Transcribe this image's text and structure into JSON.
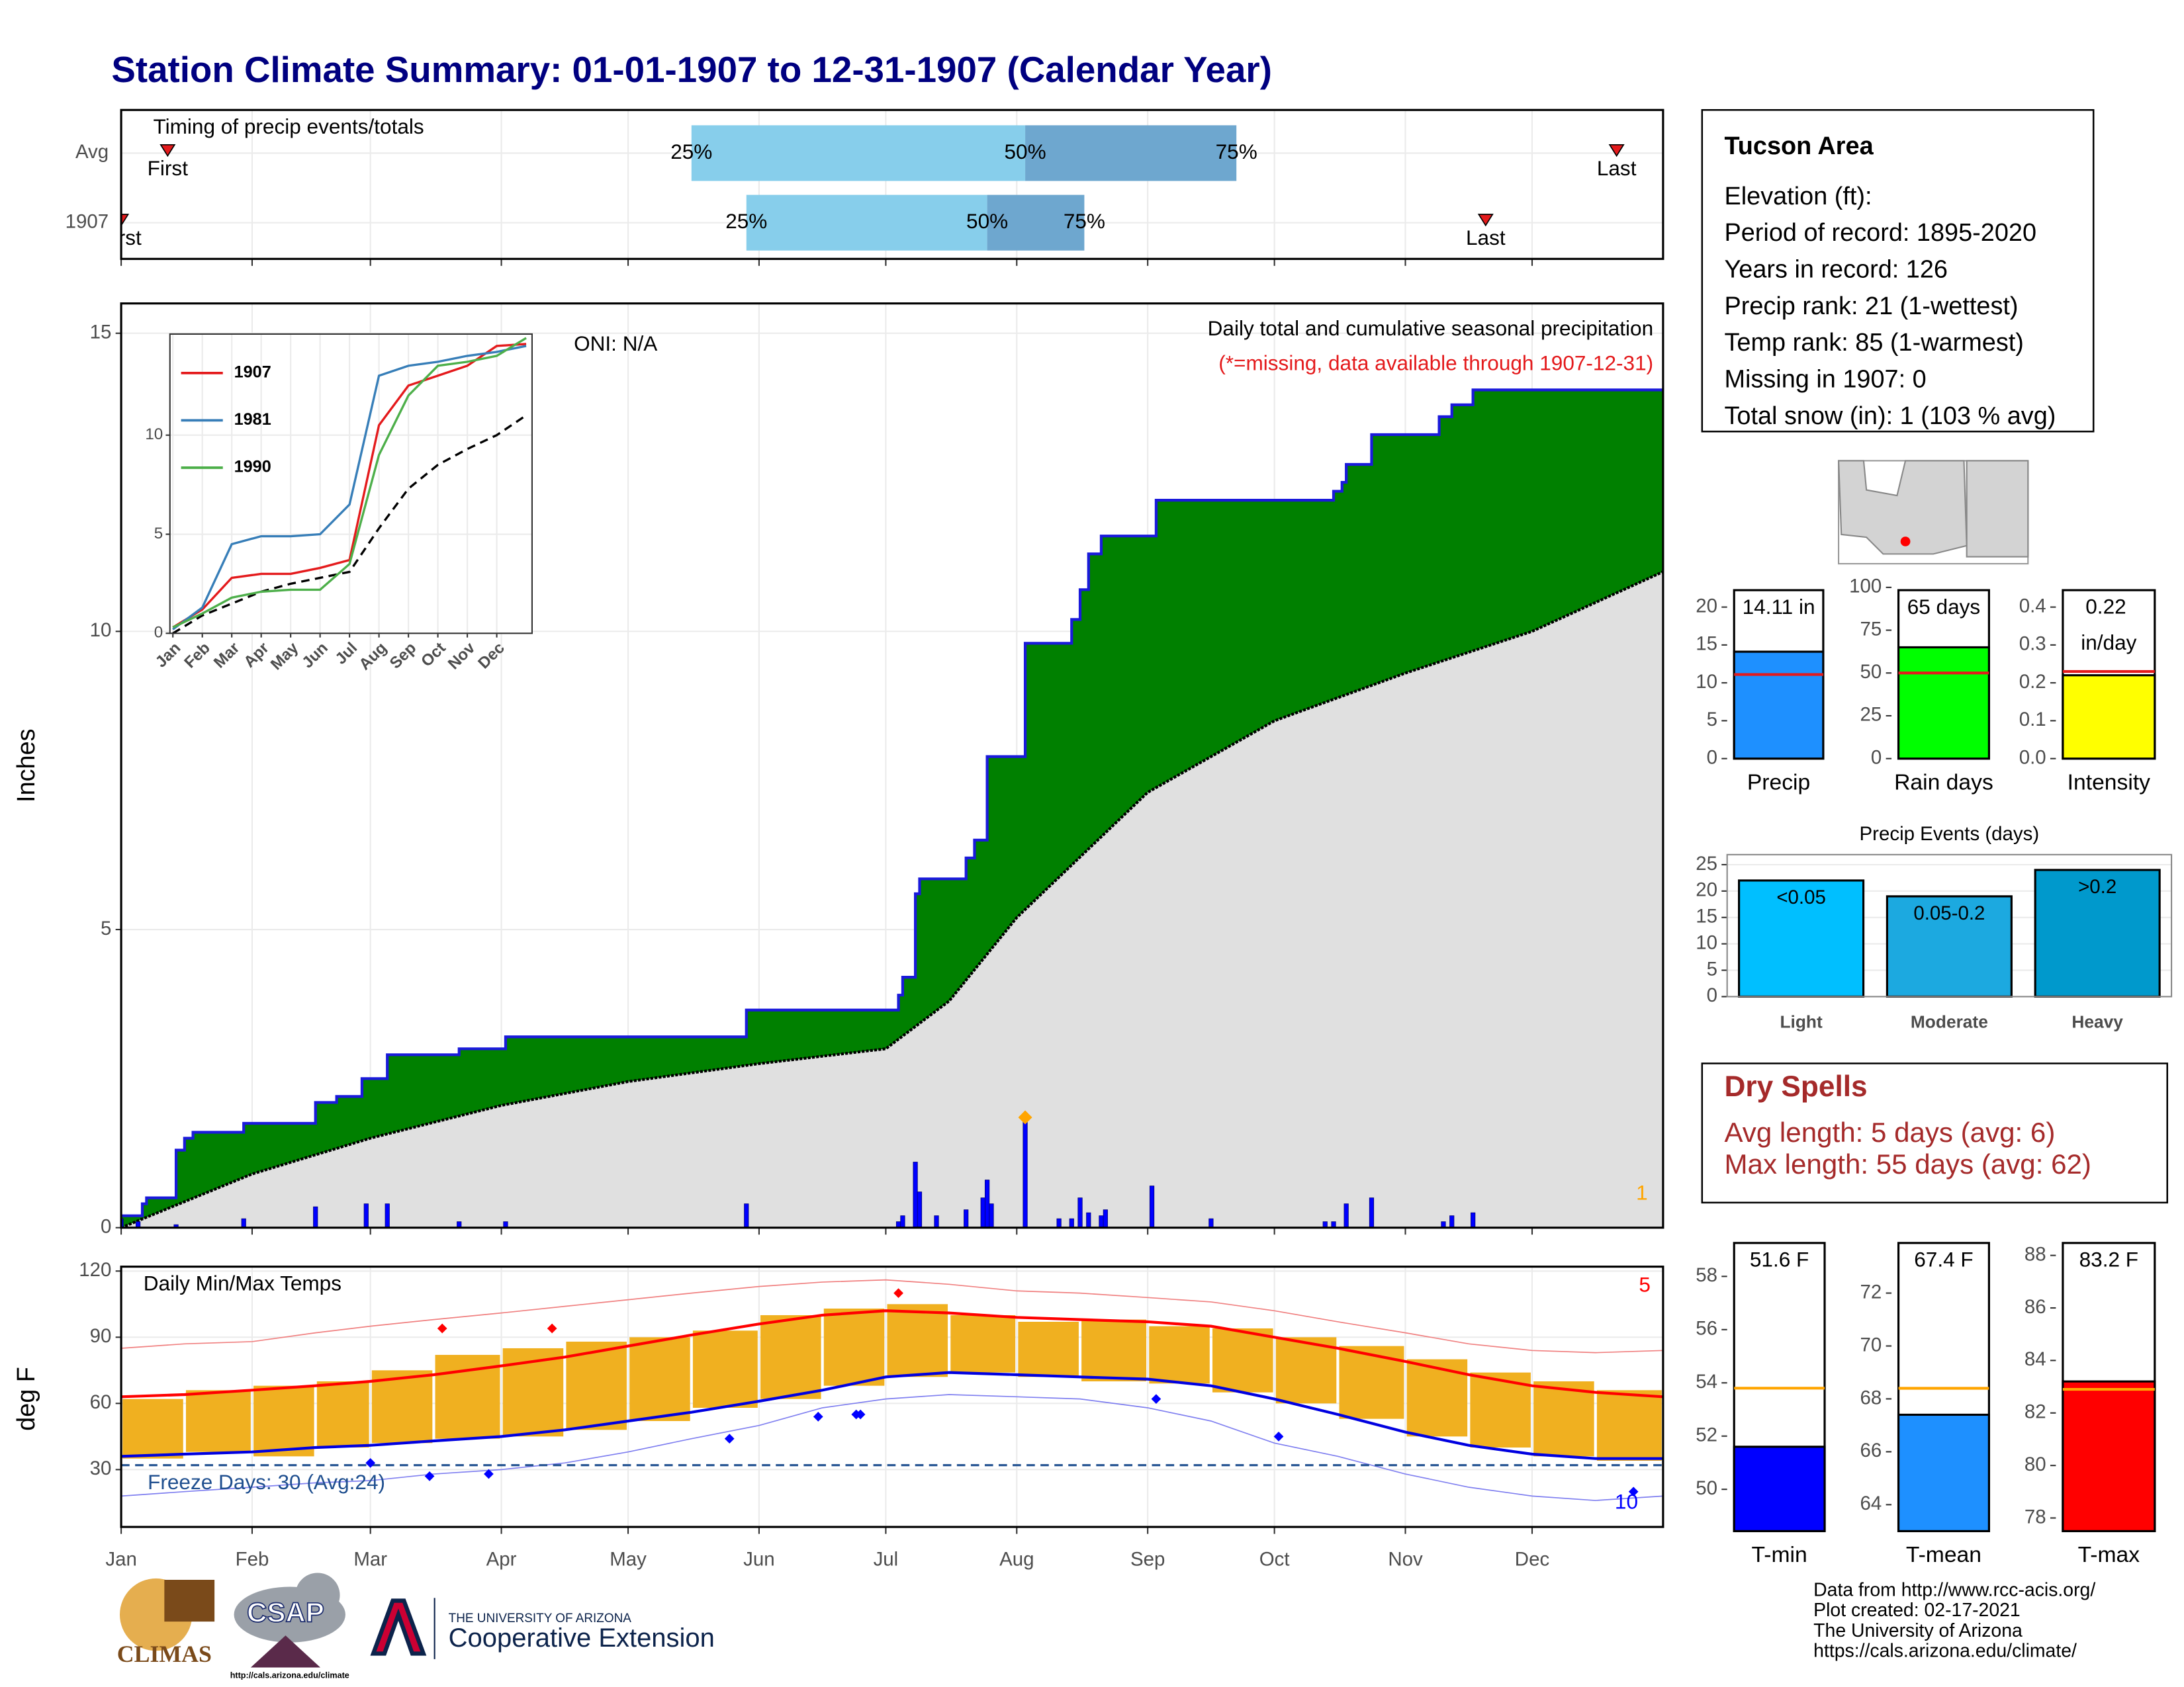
{
  "title": "Station Climate Summary: 01-01-1907 to 12-31-1907 (Calendar Year)",
  "station": {
    "name": "Tucson Area",
    "lines": [
      "Elevation (ft):",
      "Period of record: 1895-2020",
      "Years in record: 126",
      "Precip rank: 21 (1-wettest)",
      "Temp rank: 85 (1-warmest)",
      "Missing in 1907: 0",
      "Total snow (in): 1 (103 % avg)"
    ]
  },
  "dry_spells": {
    "title": "Dry Spells",
    "lines": [
      "Avg length: 5 days (avg: 6)",
      "Max length: 55 days (avg: 62)"
    ]
  },
  "footer": [
    "Data from http://www.rcc-acis.org/",
    "Plot created: 02-17-2021",
    "The University of Arizona",
    "https://cals.arizona.edu/climate/"
  ],
  "logos": {
    "climas": "CLIMAS",
    "csap": "CSAP",
    "csap_url": "http://cals.arizona.edu/climate",
    "ua": "THE UNIVERSITY OF ARIZONA",
    "ua_unit": "Cooperative Extension"
  },
  "chart_data": [
    {
      "type": "timing",
      "subtitle": "Timing of precip events/totals",
      "xlim": [
        0,
        365
      ],
      "quartile_labels": [
        "25%",
        "50%",
        "75%"
      ],
      "first_label": "First",
      "last_label": "Last",
      "colors": [
        "#87ceeb",
        "#6ea7cf"
      ],
      "marker_color": "#e41a1c",
      "series": [
        {
          "name": "Avg",
          "first": 11,
          "quartiles": [
            135,
            214,
            264
          ],
          "last": 354
        },
        {
          "name": "1907",
          "first": 0,
          "quartiles": [
            148,
            205,
            228
          ],
          "last": 323
        }
      ]
    },
    {
      "type": "area",
      "ylabel": "Inches",
      "oni": "ONI: N/A",
      "subtitle": "Daily total and cumulative seasonal precipitation",
      "note": "(*=missing, data available through 1907-12-31)",
      "corner_label": "1",
      "xlim": [
        0,
        365
      ],
      "ylim": [
        0,
        15.5
      ],
      "yticks": [
        0,
        5,
        10,
        15
      ],
      "grid": true,
      "colors": {
        "cumulative": "#008000",
        "edge": "#1a1adb",
        "average": "#e0e0e0",
        "average_line": "#000000",
        "daily": "#0000ff",
        "max": "#ffa500",
        "note": "#e41a1c",
        "corner": "#ffa500"
      },
      "cumulative": {
        "x": [
          0,
          5,
          6,
          13,
          15,
          17,
          29,
          46,
          51,
          57,
          63,
          80,
          91,
          148,
          184,
          185,
          188,
          189,
          200,
          202,
          205,
          214,
          225,
          227,
          229,
          232,
          245,
          287,
          289,
          290,
          296,
          312,
          315,
          320
        ],
        "values": [
          0.2,
          0.4,
          0.5,
          1.3,
          1.5,
          1.6,
          1.75,
          2.1,
          2.2,
          2.5,
          2.9,
          3.0,
          3.2,
          3.65,
          3.9,
          4.2,
          5.6,
          5.85,
          6.2,
          6.5,
          7.9,
          9.8,
          10.2,
          10.7,
          11.3,
          11.6,
          12.2,
          12.35,
          12.5,
          12.8,
          13.3,
          13.6,
          13.8,
          14.05
        ]
      },
      "average": {
        "x": [
          0,
          31,
          59,
          90,
          120,
          151,
          181,
          196,
          212,
          243,
          273,
          304,
          334,
          365
        ],
        "values": [
          0,
          0.9,
          1.5,
          2.05,
          2.45,
          2.75,
          3.0,
          3.8,
          5.2,
          7.3,
          8.5,
          9.3,
          10.0,
          11.0
        ]
      },
      "daily": {
        "x": [
          0,
          4,
          13,
          29,
          46,
          58,
          63,
          80,
          91,
          148,
          184,
          185,
          188,
          189,
          193,
          200,
          204,
          205,
          206,
          214,
          222,
          225,
          227,
          229,
          232,
          233,
          244,
          258,
          285,
          287,
          290,
          296,
          313,
          315,
          320
        ],
        "values": [
          0.15,
          0.1,
          0.05,
          0.15,
          0.35,
          0.4,
          0.4,
          0.1,
          0.1,
          0.4,
          0.1,
          0.2,
          1.1,
          0.6,
          0.2,
          0.3,
          0.5,
          0.8,
          0.4,
          1.85,
          0.15,
          0.15,
          0.5,
          0.25,
          0.2,
          0.3,
          0.7,
          0.15,
          0.1,
          0.1,
          0.4,
          0.5,
          0.1,
          0.2,
          0.25
        ]
      }
    },
    {
      "type": "line",
      "x": [
        0,
        1,
        2,
        3,
        4,
        5,
        6,
        7,
        8,
        9,
        10,
        11,
        12
      ],
      "xlim": [
        -0.1,
        12.2
      ],
      "ylim": [
        0,
        15.1
      ],
      "yticks": [
        0,
        5,
        10
      ],
      "xticks": [
        {
          "value": 0,
          "label": "Jan"
        },
        {
          "value": 1,
          "label": "Feb"
        },
        {
          "value": 2,
          "label": "Mar"
        },
        {
          "value": 3,
          "label": "Apr"
        },
        {
          "value": 4,
          "label": "May"
        },
        {
          "value": 5,
          "label": "Jun"
        },
        {
          "value": 6,
          "label": "Jul"
        },
        {
          "value": 7,
          "label": "Aug"
        },
        {
          "value": 8,
          "label": "Sep"
        },
        {
          "value": 9,
          "label": "Oct"
        },
        {
          "value": 10,
          "label": "Nov"
        },
        {
          "value": 11,
          "label": "Dec"
        }
      ],
      "series": [
        {
          "name": "1907",
          "color": "#e41a1c",
          "values": [
            0.3,
            1.2,
            2.8,
            3.0,
            3.0,
            3.3,
            3.7,
            10.5,
            12.5,
            13.0,
            13.5,
            14.5,
            14.6
          ]
        },
        {
          "name": "1981",
          "color": "#377eb8",
          "values": [
            0.2,
            1.3,
            4.5,
            4.9,
            4.9,
            5.0,
            6.5,
            13.0,
            13.5,
            13.7,
            14.0,
            14.2,
            14.5
          ]
        },
        {
          "name": "1990",
          "color": "#4daf4a",
          "values": [
            0.3,
            1.0,
            1.8,
            2.1,
            2.2,
            2.2,
            3.5,
            9.0,
            12.0,
            13.5,
            13.7,
            14.0,
            14.9
          ]
        }
      ],
      "average": {
        "color": "#000000",
        "values": [
          0,
          0.9,
          1.5,
          2.1,
          2.5,
          2.8,
          3.1,
          5.3,
          7.3,
          8.5,
          9.3,
          10.0,
          11.0
        ]
      }
    },
    {
      "type": "range",
      "title": "Daily Min/Max Temps",
      "ylabel": "deg F",
      "freeze_label": "Freeze Days: 30 (Avg:24)",
      "record_high_count": "5",
      "record_low_count": "10",
      "xlim": [
        0,
        365
      ],
      "ylim": [
        4,
        122
      ],
      "yticks": [
        30,
        60,
        90,
        120
      ],
      "grid": true,
      "freeze": 32,
      "xticks": [
        {
          "value": 0,
          "label": "Jan"
        },
        {
          "value": 31,
          "label": "Feb"
        },
        {
          "value": 59,
          "label": "Mar"
        },
        {
          "value": 90,
          "label": "Apr"
        },
        {
          "value": 120,
          "label": "May"
        },
        {
          "value": 151,
          "label": "Jun"
        },
        {
          "value": 181,
          "label": "Jul"
        },
        {
          "value": 212,
          "label": "Aug"
        },
        {
          "value": 243,
          "label": "Sep"
        },
        {
          "value": 273,
          "label": "Oct"
        },
        {
          "value": 304,
          "label": "Nov"
        },
        {
          "value": 334,
          "label": "Dec"
        }
      ],
      "colors": {
        "bars": "#f0b020",
        "avg_max": "#ff0000",
        "avg_min": "#0000e0",
        "record_max": "#f08080",
        "record_min": "#8080f0",
        "freeze": "#1f4f8f",
        "record_high": "#ff0000",
        "record_low": "#0000ff"
      },
      "bins": [
        0,
        15,
        31,
        46,
        59,
        74,
        90,
        105,
        120,
        135,
        151,
        166,
        181,
        196,
        212,
        227,
        243,
        258,
        273,
        288,
        304,
        319,
        334,
        349,
        365
      ],
      "highs": [
        62,
        66,
        68,
        70,
        75,
        82,
        85,
        88,
        90,
        93,
        100,
        103,
        105,
        100,
        97,
        98,
        95,
        94,
        90,
        86,
        80,
        74,
        70,
        66
      ],
      "lows": [
        35,
        38,
        36,
        40,
        42,
        44,
        45,
        48,
        52,
        58,
        62,
        68,
        72,
        74,
        72,
        70,
        69,
        65,
        60,
        53,
        45,
        40,
        36,
        34
      ],
      "x": [
        0,
        15,
        31,
        46,
        59,
        74,
        90,
        105,
        120,
        135,
        151,
        166,
        181,
        196,
        212,
        227,
        243,
        258,
        273,
        288,
        304,
        319,
        334,
        349,
        365
      ],
      "avg_max": [
        63,
        64,
        66,
        68,
        70,
        73,
        77,
        81,
        86,
        91,
        96,
        100,
        102,
        101,
        99,
        98,
        97,
        95,
        90,
        85,
        79,
        73,
        68,
        65,
        63
      ],
      "avg_min": [
        36,
        37,
        38,
        40,
        41,
        43,
        45,
        48,
        52,
        56,
        61,
        66,
        72,
        74,
        73,
        72,
        71,
        68,
        62,
        55,
        47,
        41,
        37,
        35,
        35
      ],
      "record_max": [
        85,
        87,
        88,
        92,
        95,
        98,
        101,
        104,
        107,
        110,
        113,
        115,
        116,
        114,
        111,
        110,
        108,
        106,
        102,
        97,
        92,
        87,
        84,
        83,
        84
      ],
      "record_min": [
        18,
        20,
        22,
        24,
        25,
        28,
        30,
        33,
        38,
        44,
        50,
        58,
        62,
        64,
        63,
        62,
        58,
        52,
        42,
        36,
        28,
        22,
        18,
        16,
        18
      ],
      "record_highs": {
        "x": [
          76,
          102,
          184
        ],
        "values": [
          94,
          94,
          110
        ]
      },
      "record_lows": {
        "x": [
          59,
          73,
          87,
          144,
          165,
          174,
          175,
          245,
          274,
          358
        ],
        "values": [
          33,
          27,
          28,
          44,
          54,
          55,
          55,
          62,
          45,
          20
        ]
      }
    },
    {
      "type": "bar",
      "xlabel": "Precip",
      "values": [
        14.11
      ],
      "value_labels": [
        "14.11 in"
      ],
      "average": 11.1,
      "color": "#1e90ff",
      "average_color": "#e41a1c",
      "ylim": [
        0,
        22.6
      ],
      "yticks": [
        0,
        5,
        10,
        15,
        20
      ]
    },
    {
      "type": "bar",
      "xlabel": "Rain days",
      "values": [
        65
      ],
      "value_labels": [
        "65 days"
      ],
      "average": 50,
      "color": "#00ff00",
      "average_color": "#e41a1c",
      "ylim": [
        0,
        100
      ],
      "yticks": [
        0,
        25,
        50,
        75,
        100
      ]
    },
    {
      "type": "bar",
      "xlabel": "Intensity",
      "values": [
        0.22
      ],
      "value_labels": [
        "0.22 in/day"
      ],
      "average": 0.23,
      "color": "#ffff00",
      "average_color": "#e41a1c",
      "ylim": [
        0,
        0.452
      ],
      "yticks": [
        {
          "value": 0,
          "label": "0.0"
        },
        0.1,
        0.2,
        0.3,
        0.4
      ]
    },
    {
      "type": "bar",
      "title": "Precip Events (days)",
      "categories": [
        "Light",
        "Moderate",
        "Heavy"
      ],
      "values": [
        22,
        19,
        24
      ],
      "bin_labels": [
        "<0.05",
        "0.05-0.2",
        ">0.2"
      ],
      "colors": [
        "#00bfff",
        "#1ca9e0",
        "#0099cc"
      ],
      "ylim": [
        0,
        26.9
      ],
      "yticks": [
        0,
        5,
        10,
        15,
        20,
        25
      ],
      "grid": true
    },
    {
      "type": "bar",
      "xlabel": "T-min",
      "values": [
        51.6
      ],
      "value_labels": [
        "51.6 F"
      ],
      "average": 53.8,
      "color": "#0000ff",
      "average_color": "#ffa500",
      "ylim": [
        48.43,
        59.36
      ],
      "yticks": [
        50,
        52,
        54,
        56,
        58
      ]
    },
    {
      "type": "bar",
      "xlabel": "T-mean",
      "values": [
        67.4
      ],
      "value_labels": [
        "67.4 F"
      ],
      "average": 68.4,
      "color": "#1e90ff",
      "average_color": "#ffa500",
      "ylim": [
        63.0,
        74.0
      ],
      "yticks": [
        64,
        66,
        68,
        70,
        72
      ]
    },
    {
      "type": "bar",
      "xlabel": "T-max",
      "values": [
        83.2
      ],
      "value_labels": [
        "83.2 F"
      ],
      "average": 82.9,
      "color": "#ff0000",
      "average_color": "#ffa500",
      "ylim": [
        77.5,
        88.58
      ],
      "yticks": [
        78,
        80,
        82,
        84,
        86,
        88
      ]
    }
  ]
}
